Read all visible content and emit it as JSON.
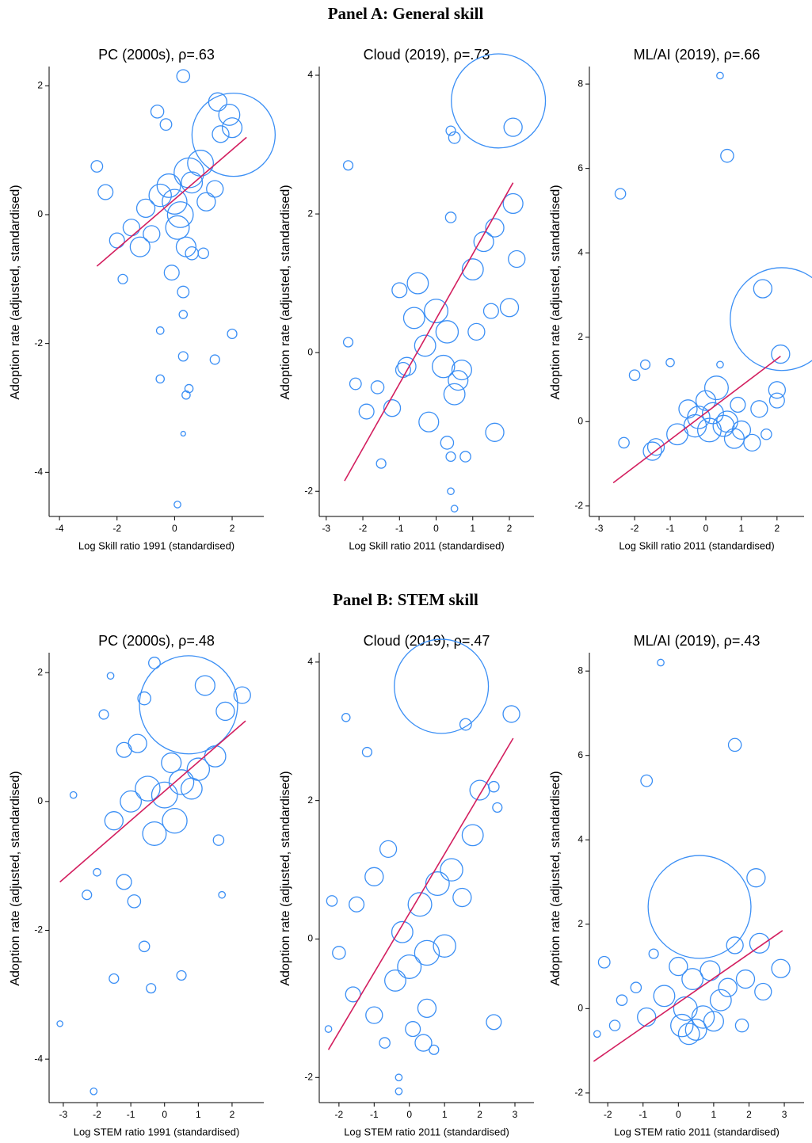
{
  "panel_headings": [
    "Panel A: General skill",
    "Panel B: STEM skill"
  ],
  "chart_data": [
    {
      "type": "scatter",
      "title": "PC (2000s), ρ=.63",
      "xlabel": "Log Skill ratio 1991 (standardised)",
      "ylabel": "Adoption rate (adjusted, standardised)",
      "xlim": [
        -4.36,
        3.1
      ],
      "ylim": [
        -4.66,
        2.25
      ],
      "xticks": [
        -4,
        -2,
        0,
        2
      ],
      "yticks": [
        -4,
        -2,
        0,
        2
      ],
      "color": "#3b8ff5",
      "x": [
        0.3,
        1.5,
        1.9,
        2.0,
        1.6,
        0.9,
        0.5,
        -0.2,
        -0.5,
        -1.0,
        -1.5,
        -2.0,
        -2.4,
        -1.2,
        -0.8,
        0.0,
        0.2,
        0.6,
        1.1,
        1.4,
        -0.3,
        -0.6,
        -1.8,
        -2.7,
        0.1,
        0.4,
        -0.1,
        0.3,
        0.6,
        1.0,
        1.4,
        0.3,
        0.5,
        0.4,
        0.3,
        0.1,
        -0.5,
        -0.5,
        2.0,
        0.3,
        2.05
      ],
      "y": [
        2.15,
        1.75,
        1.55,
        1.35,
        1.25,
        0.8,
        0.65,
        0.45,
        0.3,
        0.1,
        -0.2,
        -0.4,
        0.35,
        -0.5,
        -0.3,
        0.2,
        0.0,
        0.5,
        0.2,
        0.4,
        1.4,
        1.6,
        -1.0,
        0.75,
        -0.2,
        -0.5,
        -0.9,
        -1.2,
        -0.6,
        -0.6,
        -2.25,
        -2.2,
        -2.7,
        -2.8,
        -3.4,
        -4.5,
        -1.8,
        -2.55,
        -1.85,
        -1.55,
        1.24
      ],
      "sizes": [
        15,
        30,
        40,
        35,
        25,
        60,
        80,
        50,
        45,
        30,
        25,
        20,
        20,
        35,
        25,
        55,
        60,
        40,
        30,
        25,
        12,
        15,
        8,
        12,
        50,
        35,
        20,
        12,
        15,
        10,
        8,
        8,
        6,
        6,
        2,
        4,
        5,
        6,
        8,
        6,
        625
      ],
      "fit": {
        "color": "#d31f5f",
        "x": [
          -2.7,
          2.5
        ],
        "y": [
          -0.8,
          1.2
        ]
      }
    },
    {
      "type": "scatter",
      "title": "Cloud (2019), ρ=.73",
      "xlabel": "Log Skill ratio 2011 (standardised)",
      "ylabel": "Adoption rate (adjusted, standardised)",
      "xlim": [
        -3.19,
        2.67
      ],
      "ylim": [
        -2.34,
        4.08
      ],
      "xticks": [
        -3,
        -2,
        -1,
        0,
        1,
        2
      ],
      "yticks": [
        -2,
        0,
        2,
        4
      ],
      "color": "#3b8ff5",
      "x": [
        2.1,
        0.4,
        0.5,
        -2.4,
        -2.4,
        -1.6,
        -1.0,
        -0.5,
        0.0,
        0.3,
        0.6,
        1.0,
        1.3,
        1.6,
        2.1,
        2.2,
        0.2,
        -0.3,
        -0.8,
        -1.2,
        -1.9,
        -2.2,
        0.5,
        0.7,
        1.1,
        1.5,
        2.0,
        0.4,
        -0.2,
        -0.6,
        0.3,
        0.4,
        0.4,
        0.5,
        -1.5,
        0.8,
        1.6,
        -0.9,
        1.7
      ],
      "y": [
        3.25,
        3.2,
        3.1,
        2.7,
        0.15,
        -0.5,
        0.9,
        1.0,
        0.6,
        0.3,
        -0.4,
        1.2,
        1.6,
        1.8,
        2.15,
        1.35,
        -0.2,
        0.1,
        -0.2,
        -0.8,
        -0.85,
        -0.45,
        -0.6,
        -0.25,
        0.3,
        0.6,
        0.65,
        1.95,
        -1.0,
        0.5,
        -1.3,
        -1.5,
        -2.0,
        -2.25,
        -1.6,
        -1.5,
        -1.15,
        -0.25,
        3.63
      ],
      "sizes": [
        30,
        8,
        12,
        8,
        8,
        15,
        20,
        40,
        50,
        45,
        35,
        40,
        35,
        30,
        35,
        25,
        45,
        40,
        30,
        25,
        20,
        12,
        40,
        35,
        25,
        20,
        30,
        10,
        35,
        40,
        15,
        8,
        4,
        4,
        8,
        10,
        30,
        20,
        800
      ],
      "fit": {
        "color": "#d31f5f",
        "x": [
          -2.5,
          2.1
        ],
        "y": [
          -1.85,
          2.45
        ]
      }
    },
    {
      "type": "scatter",
      "title": "ML/AI (2019), ρ=.66",
      "xlabel": "Log Skill ratio 2011 (standardised)",
      "ylabel": "Adoption rate (adjusted, standardised)",
      "xlim": [
        -3.27,
        2.76
      ],
      "ylim": [
        -2.21,
        8.34
      ],
      "xticks": [
        -3,
        -2,
        -1,
        0,
        1,
        2
      ],
      "yticks": [
        -2,
        0,
        2,
        4,
        6,
        8
      ],
      "color": "#3b8ff5",
      "x": [
        0.4,
        0.6,
        -2.4,
        1.6,
        2.1,
        2.0,
        -1.7,
        -2.0,
        -1.0,
        -0.5,
        0.0,
        0.3,
        0.6,
        1.0,
        1.5,
        2.0,
        -0.8,
        -0.3,
        0.2,
        0.8,
        1.3,
        -1.4,
        -2.3,
        -1.5,
        0.4,
        0.9,
        1.7,
        0.1,
        -0.2,
        0.5,
        2.13
      ],
      "y": [
        8.2,
        6.3,
        5.4,
        3.15,
        1.6,
        0.75,
        1.35,
        1.1,
        1.4,
        0.3,
        0.5,
        0.8,
        0.0,
        -0.2,
        0.3,
        0.5,
        -0.3,
        -0.1,
        0.2,
        -0.4,
        -0.5,
        -0.6,
        -0.5,
        -0.7,
        1.35,
        0.4,
        -0.3,
        -0.2,
        0.1,
        -0.1,
        2.43
      ],
      "sizes": [
        4,
        15,
        10,
        30,
        30,
        25,
        8,
        10,
        6,
        30,
        35,
        50,
        40,
        30,
        25,
        20,
        40,
        45,
        40,
        35,
        25,
        25,
        10,
        30,
        4,
        20,
        10,
        50,
        45,
        40,
        955
      ],
      "fit": {
        "color": "#d31f5f",
        "x": [
          -2.6,
          2.1
        ],
        "y": [
          -1.45,
          1.55
        ]
      }
    },
    {
      "type": "scatter",
      "title": "PC (2000s), ρ=.48",
      "xlabel": "Log STEM ratio 1991 (standardised)",
      "ylabel": "Adoption rate (adjusted, standardised)",
      "xlim": [
        -3.42,
        2.94
      ],
      "ylim": [
        -4.65,
        2.26
      ],
      "xticks": [
        -3,
        -2,
        -1,
        0,
        1,
        2
      ],
      "yticks": [
        -4,
        -2,
        0,
        2
      ],
      "color": "#3b8ff5",
      "x": [
        -0.3,
        -1.6,
        -1.8,
        -0.6,
        1.2,
        1.8,
        2.3,
        1.5,
        1.0,
        0.5,
        0.0,
        -0.5,
        -1.0,
        -1.5,
        -0.3,
        0.3,
        0.8,
        -0.8,
        -1.2,
        0.2,
        1.6,
        -2.7,
        -2.3,
        -2.0,
        -1.2,
        -0.9,
        -0.4,
        -1.5,
        -3.1,
        -2.1,
        0.5,
        1.7,
        -0.6,
        0.71
      ],
      "y": [
        2.15,
        1.95,
        1.35,
        1.6,
        1.8,
        1.4,
        1.65,
        0.7,
        0.5,
        0.3,
        0.1,
        0.2,
        0.0,
        -0.3,
        -0.5,
        -0.3,
        0.2,
        0.9,
        0.8,
        0.6,
        -0.6,
        0.1,
        -1.45,
        -1.1,
        -1.25,
        -1.55,
        -2.9,
        -2.75,
        -3.45,
        -4.5,
        -2.7,
        -1.45,
        -2.25,
        1.5
      ],
      "sizes": [
        12,
        4,
        8,
        15,
        35,
        30,
        25,
        40,
        45,
        55,
        60,
        55,
        40,
        30,
        50,
        55,
        40,
        30,
        20,
        35,
        10,
        4,
        8,
        5,
        20,
        15,
        8,
        8,
        3,
        4,
        8,
        4,
        10,
        870
      ],
      "fit": {
        "color": "#d31f5f",
        "x": [
          -3.1,
          2.4
        ],
        "y": [
          -1.25,
          1.25
        ]
      }
    },
    {
      "type": "scatter",
      "title": "Cloud (2019), ρ=.47",
      "xlabel": "Log STEM ratio 2011 (standardised)",
      "ylabel": "Adoption rate (adjusted, standardised)",
      "xlim": [
        -2.56,
        3.54
      ],
      "ylim": [
        -2.34,
        4.09
      ],
      "xticks": [
        -2,
        -1,
        0,
        1,
        2,
        3
      ],
      "yticks": [
        -2,
        0,
        2,
        4
      ],
      "color": "#3b8ff5",
      "x": [
        2.9,
        1.6,
        -1.8,
        -1.2,
        2.0,
        2.4,
        2.5,
        1.8,
        1.2,
        0.8,
        0.3,
        -0.2,
        -0.6,
        -1.0,
        -1.5,
        -2.0,
        0.5,
        0.0,
        -0.4,
        1.0,
        1.5,
        -1.6,
        -2.2,
        0.4,
        0.7,
        -0.7,
        -0.3,
        0.1,
        0.5,
        -1.0,
        -2.3,
        2.4,
        -0.3,
        0.91
      ],
      "y": [
        3.25,
        3.1,
        3.2,
        2.7,
        2.15,
        2.2,
        1.9,
        1.5,
        1.0,
        0.8,
        0.5,
        0.1,
        1.3,
        0.9,
        0.5,
        -0.2,
        -0.2,
        -0.4,
        -0.6,
        -0.1,
        0.6,
        -0.8,
        0.55,
        -1.5,
        -1.6,
        -1.5,
        -2.0,
        -1.3,
        -1.0,
        -1.1,
        -1.3,
        -1.2,
        -2.2,
        3.65
      ],
      "sizes": [
        25,
        12,
        6,
        8,
        35,
        10,
        8,
        40,
        45,
        50,
        50,
        40,
        25,
        30,
        20,
        15,
        55,
        50,
        40,
        45,
        30,
        20,
        10,
        25,
        8,
        10,
        4,
        20,
        30,
        25,
        4,
        20,
        4,
        800
      ],
      "fit": {
        "color": "#d31f5f",
        "x": [
          -2.3,
          2.95
        ],
        "y": [
          -1.6,
          2.9
        ]
      }
    },
    {
      "type": "scatter",
      "title": "ML/AI (2019), ρ=.43",
      "xlabel": "Log STEM ratio 2011 (standardised)",
      "ylabel": "Adoption rate (adjusted, standardised)",
      "xlim": [
        -2.52,
        3.56
      ],
      "ylim": [
        -2.19,
        8.36
      ],
      "xticks": [
        -2,
        -1,
        0,
        1,
        2,
        3
      ],
      "yticks": [
        -2,
        0,
        2,
        4,
        6,
        8
      ],
      "color": "#3b8ff5",
      "x": [
        -0.5,
        1.6,
        -0.9,
        2.2,
        2.3,
        1.6,
        2.9,
        -2.1,
        -0.7,
        0.0,
        0.4,
        0.9,
        1.4,
        1.9,
        2.4,
        -1.2,
        -1.6,
        -0.4,
        0.2,
        0.7,
        1.2,
        -1.8,
        -2.3,
        0.1,
        0.5,
        1.0,
        -0.9,
        0.3,
        1.8,
        0.6
      ],
      "y": [
        8.2,
        6.25,
        5.4,
        3.1,
        1.55,
        1.5,
        0.95,
        1.1,
        1.3,
        1.0,
        0.7,
        0.9,
        0.5,
        0.7,
        0.4,
        0.5,
        0.2,
        0.3,
        0.0,
        -0.2,
        0.2,
        -0.4,
        -0.6,
        -0.4,
        -0.5,
        -0.3,
        -0.2,
        -0.6,
        -0.4,
        2.41
      ],
      "sizes": [
        4,
        15,
        12,
        30,
        35,
        25,
        30,
        12,
        8,
        30,
        40,
        35,
        30,
        30,
        25,
        10,
        10,
        40,
        50,
        45,
        40,
        10,
        4,
        45,
        40,
        35,
        30,
        40,
        15,
        955
      ],
      "fit": {
        "color": "#d31f5f",
        "x": [
          -2.4,
          2.95
        ],
        "y": [
          -1.25,
          1.85
        ]
      }
    }
  ]
}
